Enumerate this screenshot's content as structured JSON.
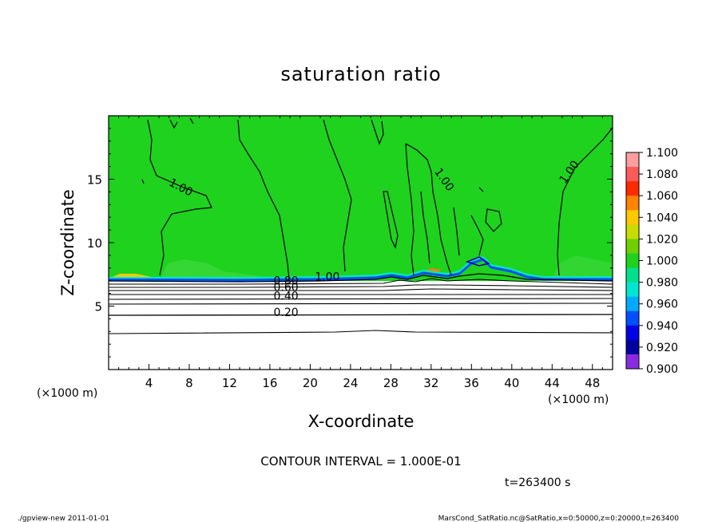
{
  "chart_data": {
    "type": "contour",
    "title": "saturation ratio",
    "xlabel": "X-coordinate",
    "ylabel": "Z-coordinate",
    "x_unit_label": "(×1000 m)",
    "z_unit_label": "(×1000 m)",
    "xlim": [
      0,
      50
    ],
    "ylim": [
      0,
      20
    ],
    "x_ticks": [
      4,
      8,
      12,
      16,
      20,
      24,
      28,
      32,
      36,
      40,
      44,
      48
    ],
    "y_ticks": [
      5,
      10,
      15
    ],
    "contour_interval_text": "CONTOUR INTERVAL = 1.000E-01",
    "time_text": "t=263400 s",
    "contour_labels": [
      {
        "text": "1.00",
        "x": 7,
        "z": 14.1,
        "rot": 28
      },
      {
        "text": "1.00",
        "x": 33,
        "z": 14.8,
        "rot": 55
      },
      {
        "text": "1.00",
        "x": 46,
        "z": 15.4,
        "rot": -55
      },
      {
        "text": "1.00",
        "x": 21.7,
        "z": 7.0,
        "rot": 0
      },
      {
        "text": "0.80",
        "x": 17.6,
        "z": 6.7,
        "rot": 0
      },
      {
        "text": "0.60",
        "x": 17.6,
        "z": 6.2,
        "rot": 0
      },
      {
        "text": "0.40",
        "x": 17.6,
        "z": 5.5,
        "rot": 0
      },
      {
        "text": "0.20",
        "x": 17.6,
        "z": 4.2,
        "rot": 0
      }
    ],
    "colorbar": {
      "ticks": [
        "1.100",
        "1.080",
        "1.060",
        "1.040",
        "1.020",
        "1.000",
        "0.980",
        "0.960",
        "0.940",
        "0.920",
        "0.900"
      ],
      "colors_top_to_bottom": [
        "#ff9e9e",
        "#ff5a5a",
        "#ff2a00",
        "#ff8200",
        "#ffc800",
        "#c8dc00",
        "#6ed000",
        "#1ed21e",
        "#00e08c",
        "#00e6d2",
        "#00aaff",
        "#0050ff",
        "#0000e6",
        "#0000a0",
        "#8a2be2"
      ]
    }
  },
  "footer": {
    "left": "./gpview-new  2011-01-01",
    "right": "MarsCond_SatRatio.nc@SatRatio,x=0:50000,z=0:20000,t=263400"
  }
}
